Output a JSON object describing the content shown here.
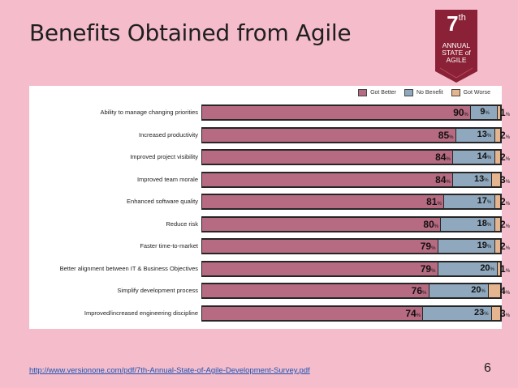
{
  "title": "Benefits Obtained from Agile",
  "badge": {
    "number": "7",
    "suffix": "th",
    "line1": "ANNUAL",
    "line2": "STATE of",
    "line3": "AGILE"
  },
  "colors": {
    "got_better": "#b76b82",
    "no_benefit": "#8fa8bd",
    "got_worse": "#e5b590"
  },
  "chart_data": {
    "type": "bar",
    "orientation": "horizontal-stacked",
    "legend_placement": "top-right",
    "series_names": [
      "Got Better",
      "No Benefit",
      "Got Worse"
    ],
    "categories": [
      "Ability to manage changing priorities",
      "Increased productivity",
      "Improved project visibility",
      "Improved team morale",
      "Enhanced software quality",
      "Reduce risk",
      "Faster time-to-market",
      "Better alignment between IT & Business Objectives",
      "Simplify development process",
      "Improved/increased engineering discipline"
    ],
    "series": [
      {
        "name": "Got Better",
        "values": [
          90,
          85,
          84,
          84,
          81,
          80,
          79,
          79,
          76,
          74
        ]
      },
      {
        "name": "No Benefit",
        "values": [
          9,
          13,
          14,
          13,
          17,
          18,
          19,
          20,
          20,
          23
        ]
      },
      {
        "name": "Got Worse",
        "values": [
          1,
          2,
          2,
          3,
          2,
          2,
          2,
          1,
          4,
          3
        ]
      }
    ],
    "value_suffix": "%"
  },
  "footer": {
    "url": "http://www.versionone.com/pdf/7th-Annual-State-of-Agile-Development-Survey.pdf",
    "page": "6"
  }
}
